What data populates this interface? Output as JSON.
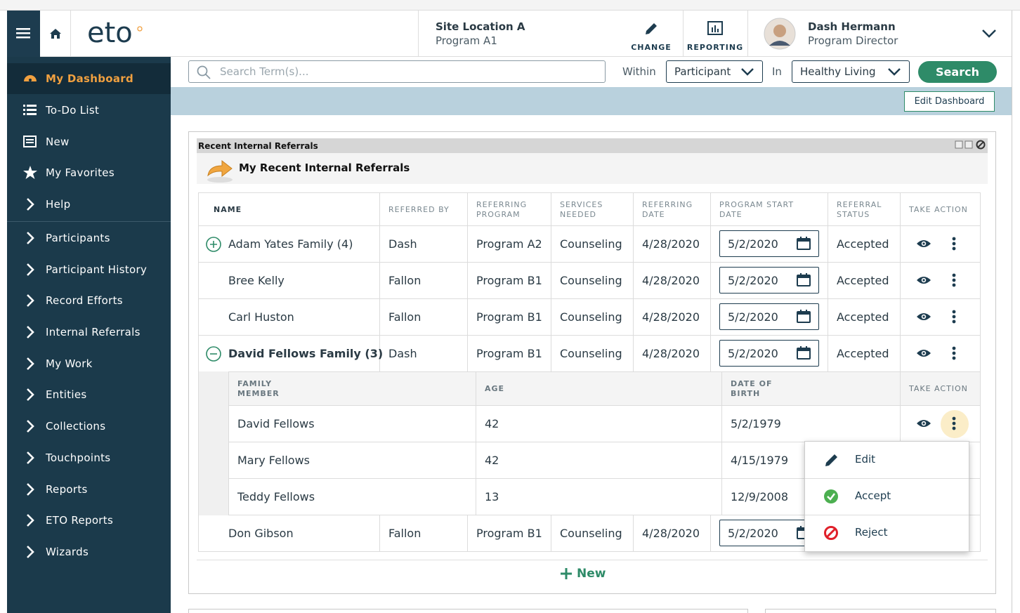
{
  "header": {
    "logo": "eto",
    "site": "Site Location A",
    "program": "Program A1",
    "change": "CHANGE",
    "reporting": "REPORTING",
    "user_name": "Dash Hermann",
    "user_role": "Program Director"
  },
  "sidebar": {
    "items": [
      "My Dashboard",
      "To-Do List",
      "New",
      "My Favorites",
      "Help",
      "Participants",
      "Participant History",
      "Record Efforts",
      "Internal Referrals",
      "My Work",
      "Entities",
      "Collections",
      "Touchpoints",
      "Reports",
      "ETO Reports",
      "Wizards"
    ]
  },
  "search": {
    "placeholder": "Search Term(s)...",
    "within_label": "Within",
    "within_value": "Participant",
    "in_label": "In",
    "in_value": "Healthy Living",
    "button": "Search"
  },
  "edit_dashboard": "Edit Dashboard",
  "widget": {
    "title": "Recent Internal Referrals",
    "subtitle": "My Recent Internal Referrals",
    "columns": [
      "NAME",
      "REFERRED BY",
      "REFERRING PROGRAM",
      "SERVICES NEEDED",
      "REFERRING DATE",
      "PROGRAM START DATE",
      "REFERRAL STATUS",
      "TAKE ACTION"
    ],
    "rows": [
      [
        "Adam Yates Family (4)",
        "Dash",
        "Program A2",
        "Counseling",
        "4/28/2020",
        "5/2/2020",
        "Accepted"
      ],
      [
        "Bree Kelly",
        "Fallon",
        "Program B1",
        "Counseling",
        "4/28/2020",
        "5/2/2020",
        "Accepted"
      ],
      [
        "Carl Huston",
        "Fallon",
        "Program B1",
        "Counseling",
        "4/28/2020",
        "5/2/2020",
        "Accepted"
      ],
      [
        "David Fellows Family (3)",
        "Dash",
        "Program B1",
        "Counseling",
        "4/28/2020",
        "5/2/2020",
        "Accepted"
      ],
      [
        "Don Gibson",
        "Fallon",
        "Program B1",
        "Counseling",
        "4/28/2020",
        "5/2/2020"
      ]
    ],
    "family": {
      "columns": [
        "FAMILY MEMBER",
        "AGE",
        "DATE OF BIRTH",
        "TAKE ACTION"
      ],
      "rows": [
        [
          "David Fellows",
          "42",
          "5/2/1979"
        ],
        [
          "Mary Fellows",
          "42",
          "4/15/1979"
        ],
        [
          "Teddy Fellows",
          "13",
          "12/9/2008"
        ]
      ]
    },
    "menu": [
      "Edit",
      "Accept",
      "Reject"
    ],
    "new": "New"
  }
}
